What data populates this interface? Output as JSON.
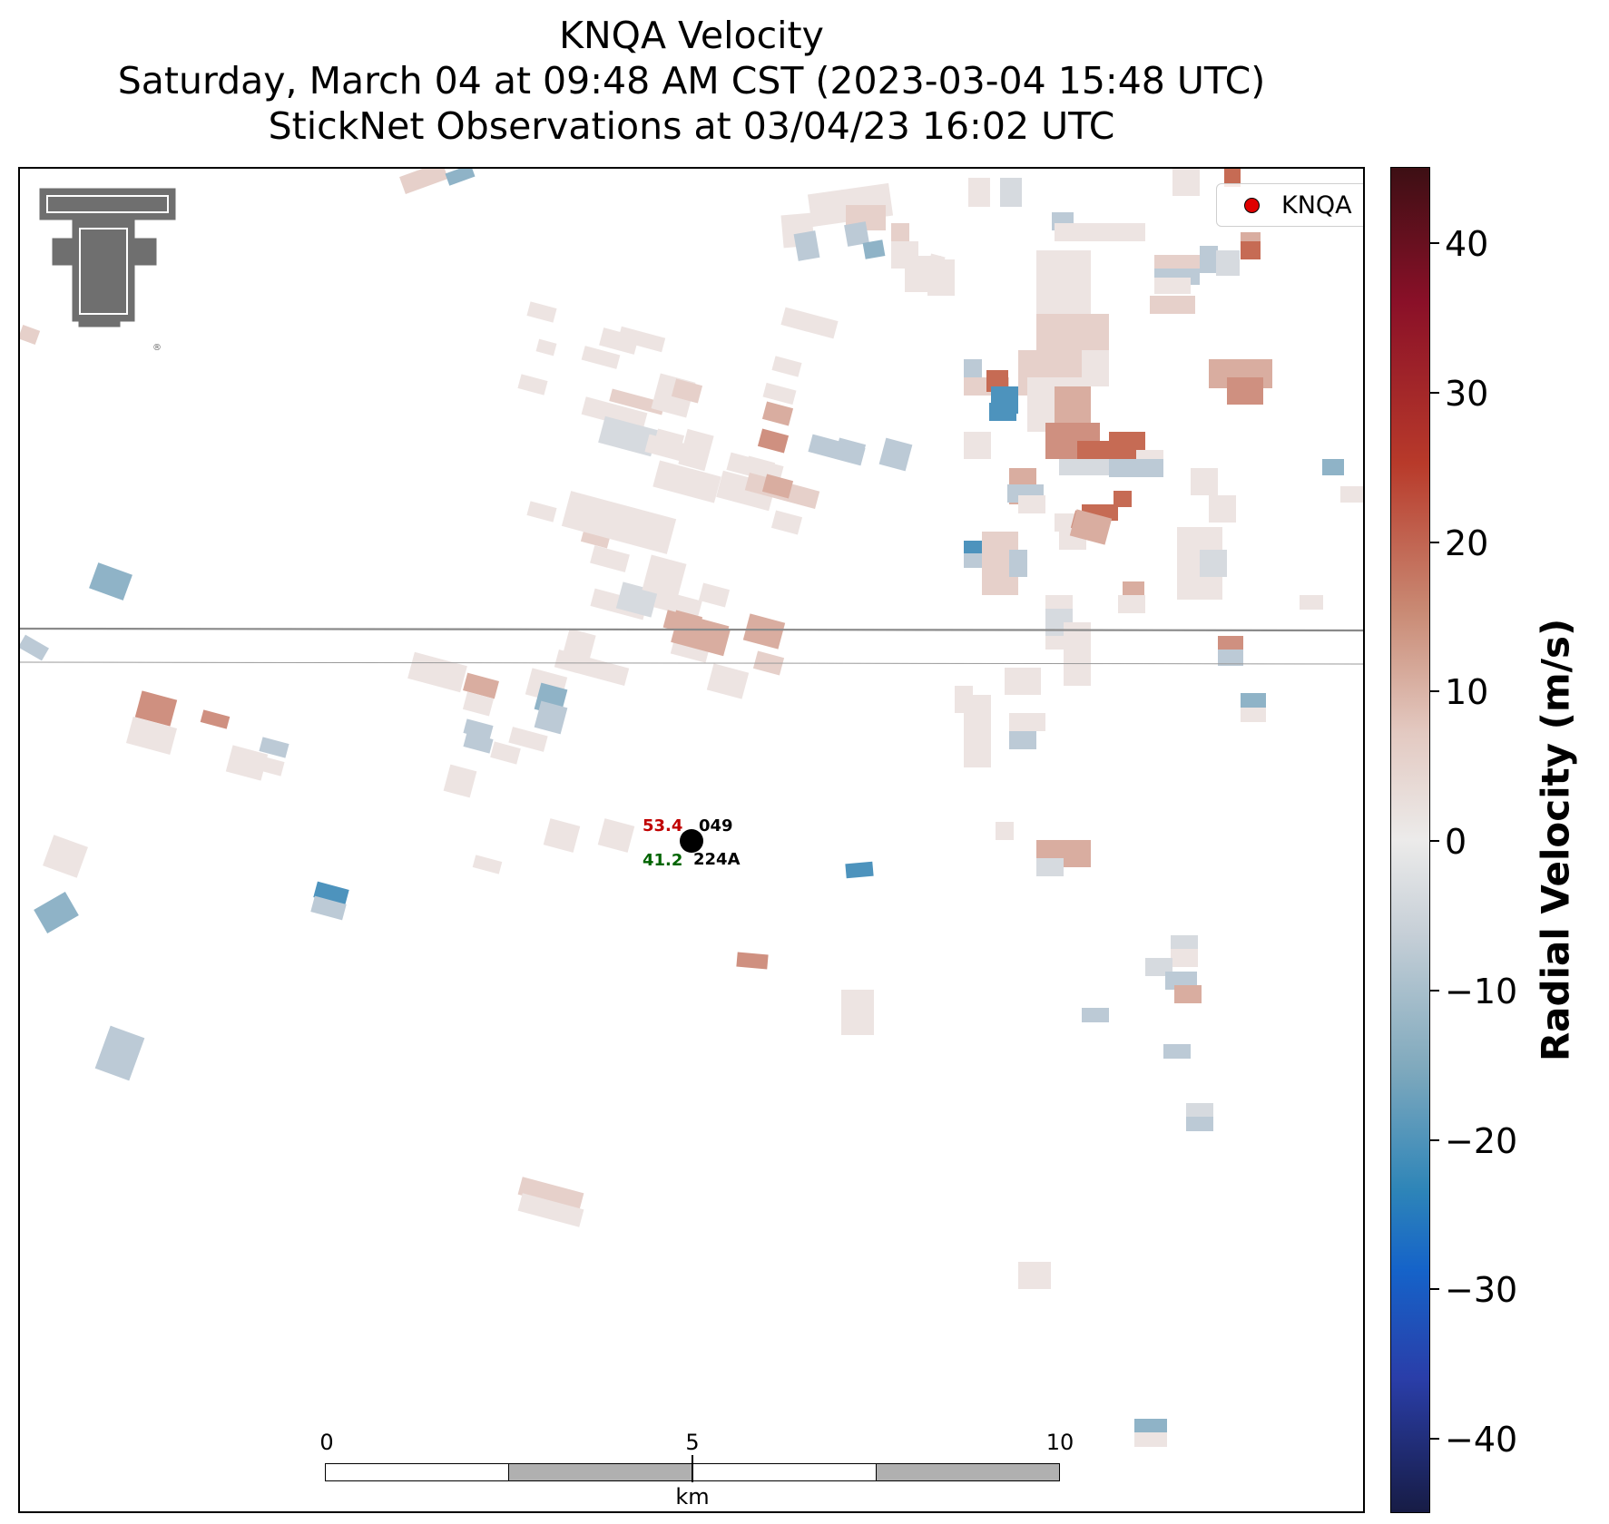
{
  "title": {
    "line1": "KNQA Velocity",
    "line2": "Saturday, March 04 at 09:48 AM CST (2023-03-04 15:48 UTC)",
    "line3": "StickNet Observations at 03/04/23 16:02 UTC"
  },
  "legend": {
    "label": "KNQA"
  },
  "station": {
    "temp": "53.4",
    "id_top": "049",
    "dewpoint": "41.2",
    "id_bottom": "224A"
  },
  "scale_bar": {
    "ticks": [
      "0",
      "5",
      "10"
    ],
    "unit": "km"
  },
  "colorbar": {
    "label": "Radial Velocity (m/s)",
    "ticks": [
      "40",
      "30",
      "20",
      "10",
      "0",
      "−10",
      "−20",
      "−30",
      "−40"
    ],
    "range": [
      -45,
      45
    ]
  },
  "colors": {
    "station_marker": "#e00000",
    "temp": "#c00000",
    "dewpoint": "#006400"
  },
  "logo": "texas-tech-double-t-logo"
}
